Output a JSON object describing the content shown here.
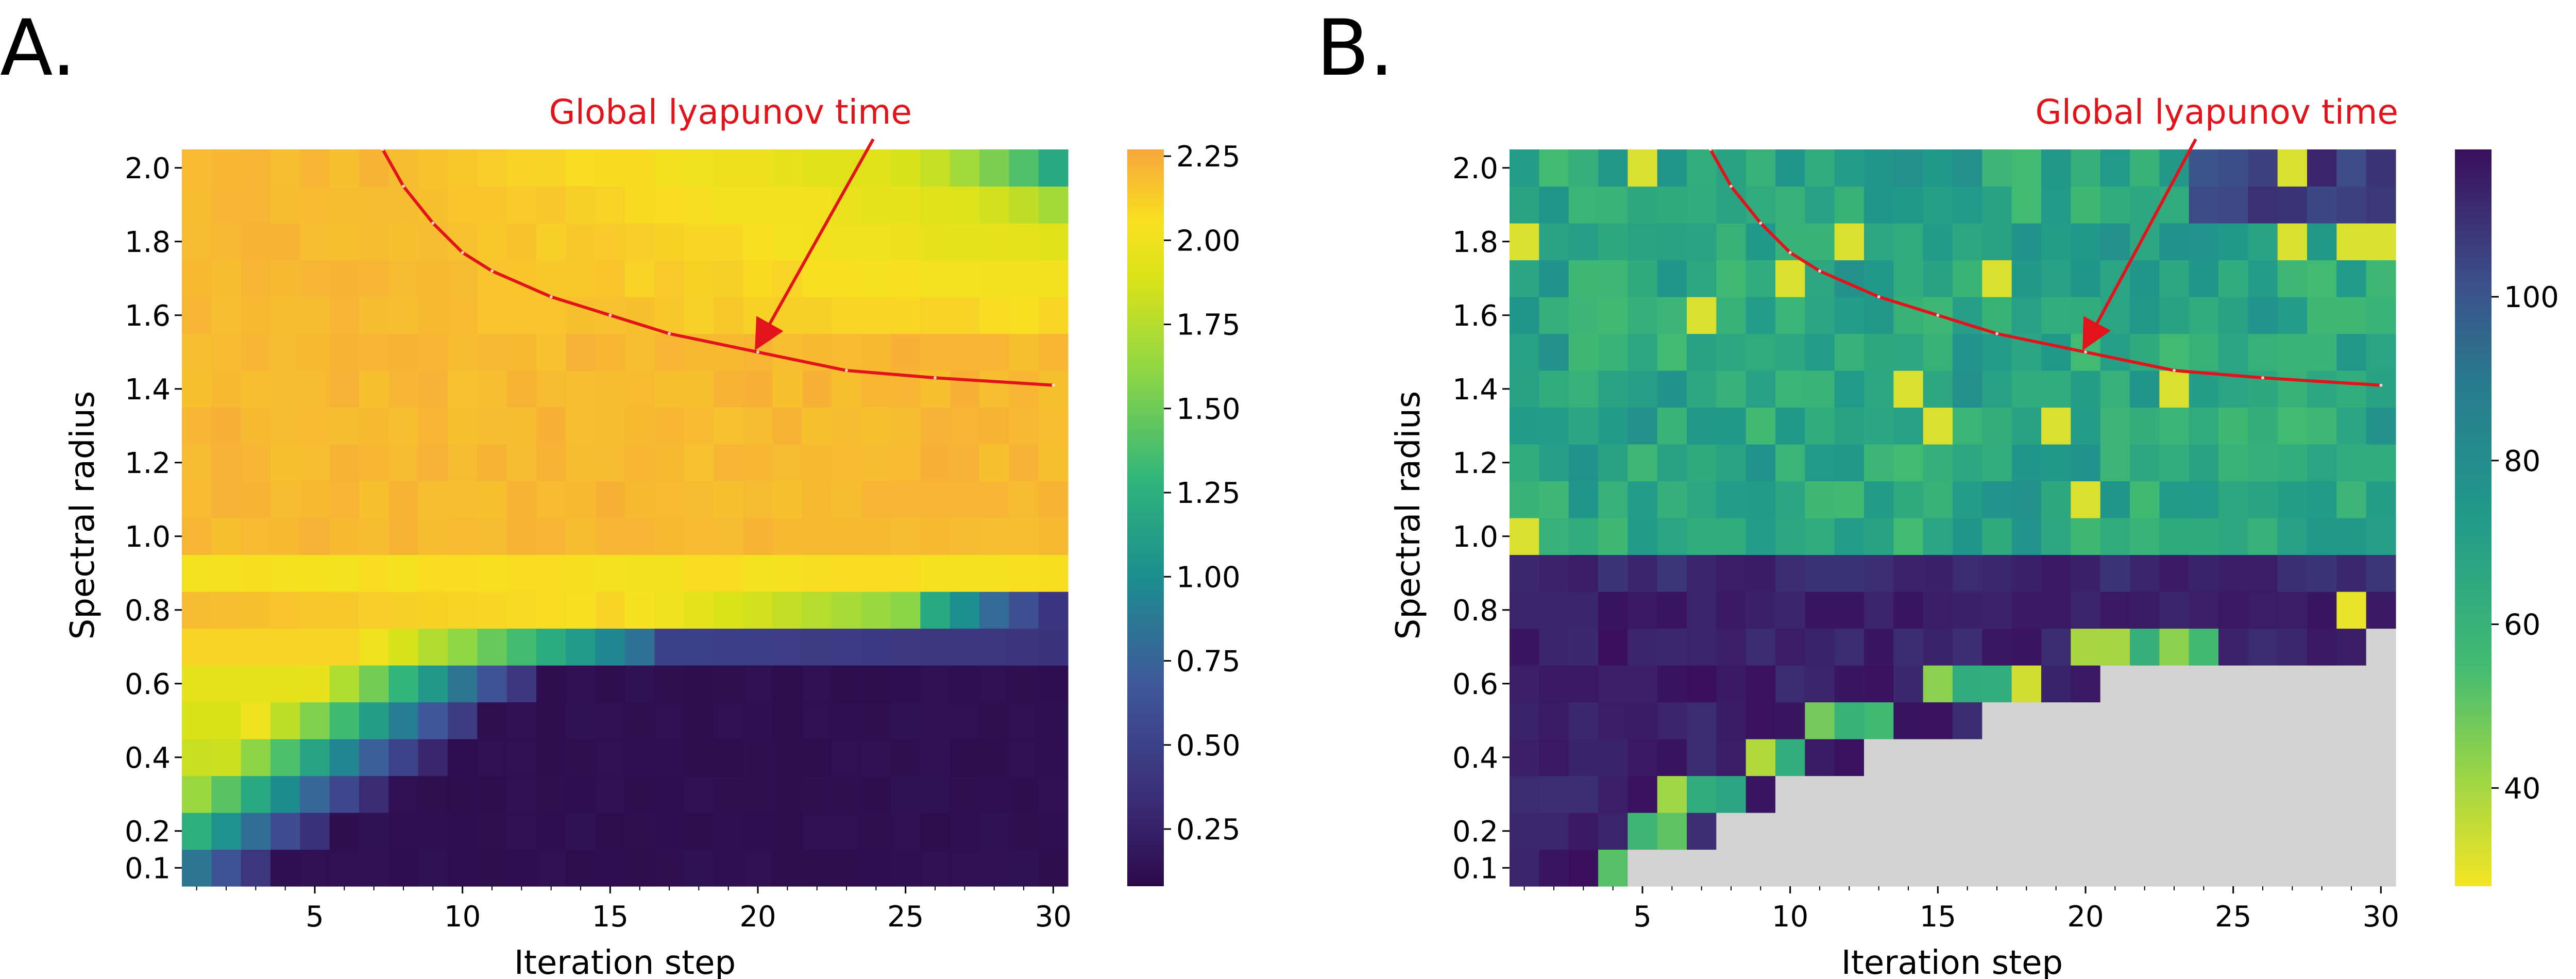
{
  "chart_data": [
    {
      "panel": "A.",
      "type": "heatmap",
      "xlabel": "Iteration step",
      "ylabel": "Spectral radius",
      "x_ticks": [
        5,
        10,
        15,
        20,
        25,
        30
      ],
      "y_ticks": [
        0.1,
        0.2,
        0.4,
        0.6,
        0.8,
        1.0,
        1.2,
        1.4,
        1.6,
        1.8,
        2.0
      ],
      "x": [
        1,
        2,
        3,
        4,
        5,
        6,
        7,
        8,
        9,
        10,
        11,
        12,
        13,
        14,
        15,
        16,
        17,
        18,
        19,
        20,
        21,
        22,
        23,
        24,
        25,
        26,
        27,
        28,
        29,
        30
      ],
      "y": [
        0.1,
        0.2,
        0.3,
        0.4,
        0.5,
        0.6,
        0.7,
        0.8,
        0.9,
        1.0,
        1.1,
        1.2,
        1.3,
        1.4,
        1.5,
        1.6,
        1.7,
        1.8,
        1.9,
        2.0
      ],
      "colormap": "plasma-like (orange-yellow-green-teal-purple)",
      "colorbar": {
        "range": [
          0.08,
          2.27
        ],
        "ticks": [
          0.25,
          0.5,
          0.75,
          1.0,
          1.25,
          1.5,
          1.75,
          2.0,
          2.25
        ],
        "tick_labels": [
          "0.25",
          "0.50",
          "0.75",
          "1.00",
          "1.25",
          "1.50",
          "1.75",
          "2.00",
          "2.25"
        ]
      },
      "annotation": {
        "text": "Global lyapunov time",
        "arrow_to": [
          20,
          1.5
        ]
      },
      "lyapunov_line": [
        [
          7.3,
          2.05
        ],
        [
          8,
          1.95
        ],
        [
          9,
          1.85
        ],
        [
          10,
          1.77
        ],
        [
          11,
          1.72
        ],
        [
          13,
          1.65
        ],
        [
          15,
          1.6
        ],
        [
          17,
          1.55
        ],
        [
          20,
          1.5
        ],
        [
          23,
          1.45
        ],
        [
          26,
          1.43
        ],
        [
          30,
          1.41
        ]
      ],
      "value_model": {
        "note": "cell values grouped by row regime",
        "high_rows_ge_1_0": 2.18,
        "row_0_9": 2.05,
        "row_0_8_decay": [
          2.15,
          2.1,
          2.05,
          1.9,
          1.55,
          0.45
        ],
        "row_0_7_decay": [
          2.05,
          1.8,
          1.4,
          0.55,
          0.4
        ],
        "low_rows_floor": 0.1
      }
    },
    {
      "panel": "B.",
      "type": "heatmap",
      "xlabel": "Iteration step",
      "ylabel": "Spectral radius",
      "x_ticks": [
        5,
        10,
        15,
        20,
        25,
        30
      ],
      "y_ticks": [
        0.1,
        0.2,
        0.4,
        0.6,
        0.8,
        1.0,
        1.2,
        1.4,
        1.6,
        1.8,
        2.0
      ],
      "x": [
        1,
        2,
        3,
        4,
        5,
        6,
        7,
        8,
        9,
        10,
        11,
        12,
        13,
        14,
        15,
        16,
        17,
        18,
        19,
        20,
        21,
        22,
        23,
        24,
        25,
        26,
        27,
        28,
        29,
        30
      ],
      "y": [
        0.1,
        0.2,
        0.3,
        0.4,
        0.5,
        0.6,
        0.7,
        0.8,
        0.9,
        1.0,
        1.1,
        1.2,
        1.3,
        1.4,
        1.5,
        1.6,
        1.7,
        1.8,
        1.9,
        2.0
      ],
      "colormap": "viridis reversed (yellow-green-teal-purple)",
      "missing_color": "#d3d3d3",
      "colorbar": {
        "range": [
          28,
          118
        ],
        "ticks": [
          40,
          60,
          80,
          100
        ],
        "tick_labels": [
          "40",
          "60",
          "80",
          "100"
        ]
      },
      "annotation": {
        "text": "Global lyapunov time",
        "arrow_to": [
          20,
          1.5
        ]
      },
      "lyapunov_line": [
        [
          7.3,
          2.05
        ],
        [
          8,
          1.95
        ],
        [
          9,
          1.85
        ],
        [
          10,
          1.77
        ],
        [
          11,
          1.72
        ],
        [
          13,
          1.65
        ],
        [
          15,
          1.6
        ],
        [
          17,
          1.55
        ],
        [
          20,
          1.5
        ],
        [
          23,
          1.45
        ],
        [
          26,
          1.43
        ],
        [
          30,
          1.41
        ]
      ],
      "value_model": {
        "upper_rows_ge_1_0": 65,
        "rows_0_8_0_9": 112,
        "low_rows": 112,
        "missing_region": "gray triangle below a diagonal in the bottom-right"
      }
    }
  ]
}
